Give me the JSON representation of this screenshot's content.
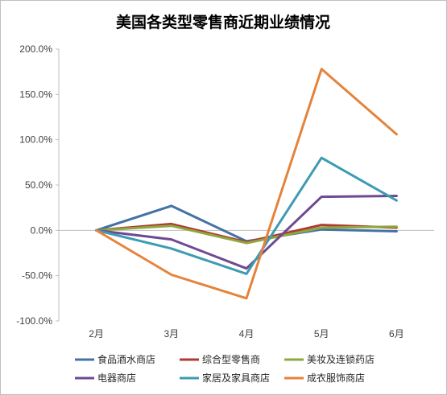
{
  "chart_data": {
    "type": "line",
    "title": "美国各类型零售商近期业绩情况",
    "categories": [
      "2月",
      "3月",
      "4月",
      "5月",
      "6月"
    ],
    "y_tick_labels": [
      "200.0%",
      "150.0%",
      "100.0%",
      "50.0%",
      "0.0%",
      "-50.0%",
      "-100.0%"
    ],
    "ylim": [
      -100,
      200
    ],
    "y_unit": "%",
    "grid": false,
    "legend_position": "bottom",
    "series": [
      {
        "name": "食品酒水商店",
        "color": "#4472a4",
        "values": [
          0,
          27,
          -12,
          1,
          -1
        ]
      },
      {
        "name": "综合型零售商",
        "color": "#b03a33",
        "values": [
          0,
          7,
          -13,
          6,
          3
        ]
      },
      {
        "name": "美妆及连锁药店",
        "color": "#8ea83e",
        "values": [
          0,
          5,
          -14,
          3,
          4
        ]
      },
      {
        "name": "电器商店",
        "color": "#6e4a92",
        "values": [
          0,
          -10,
          -42,
          37,
          38
        ]
      },
      {
        "name": "家居及家具商店",
        "color": "#3d9bb2",
        "values": [
          0,
          -20,
          -48,
          80,
          33
        ]
      },
      {
        "name": "成衣服饰商店",
        "color": "#e5833b",
        "values": [
          0,
          -49,
          -75,
          178,
          106
        ]
      }
    ]
  }
}
